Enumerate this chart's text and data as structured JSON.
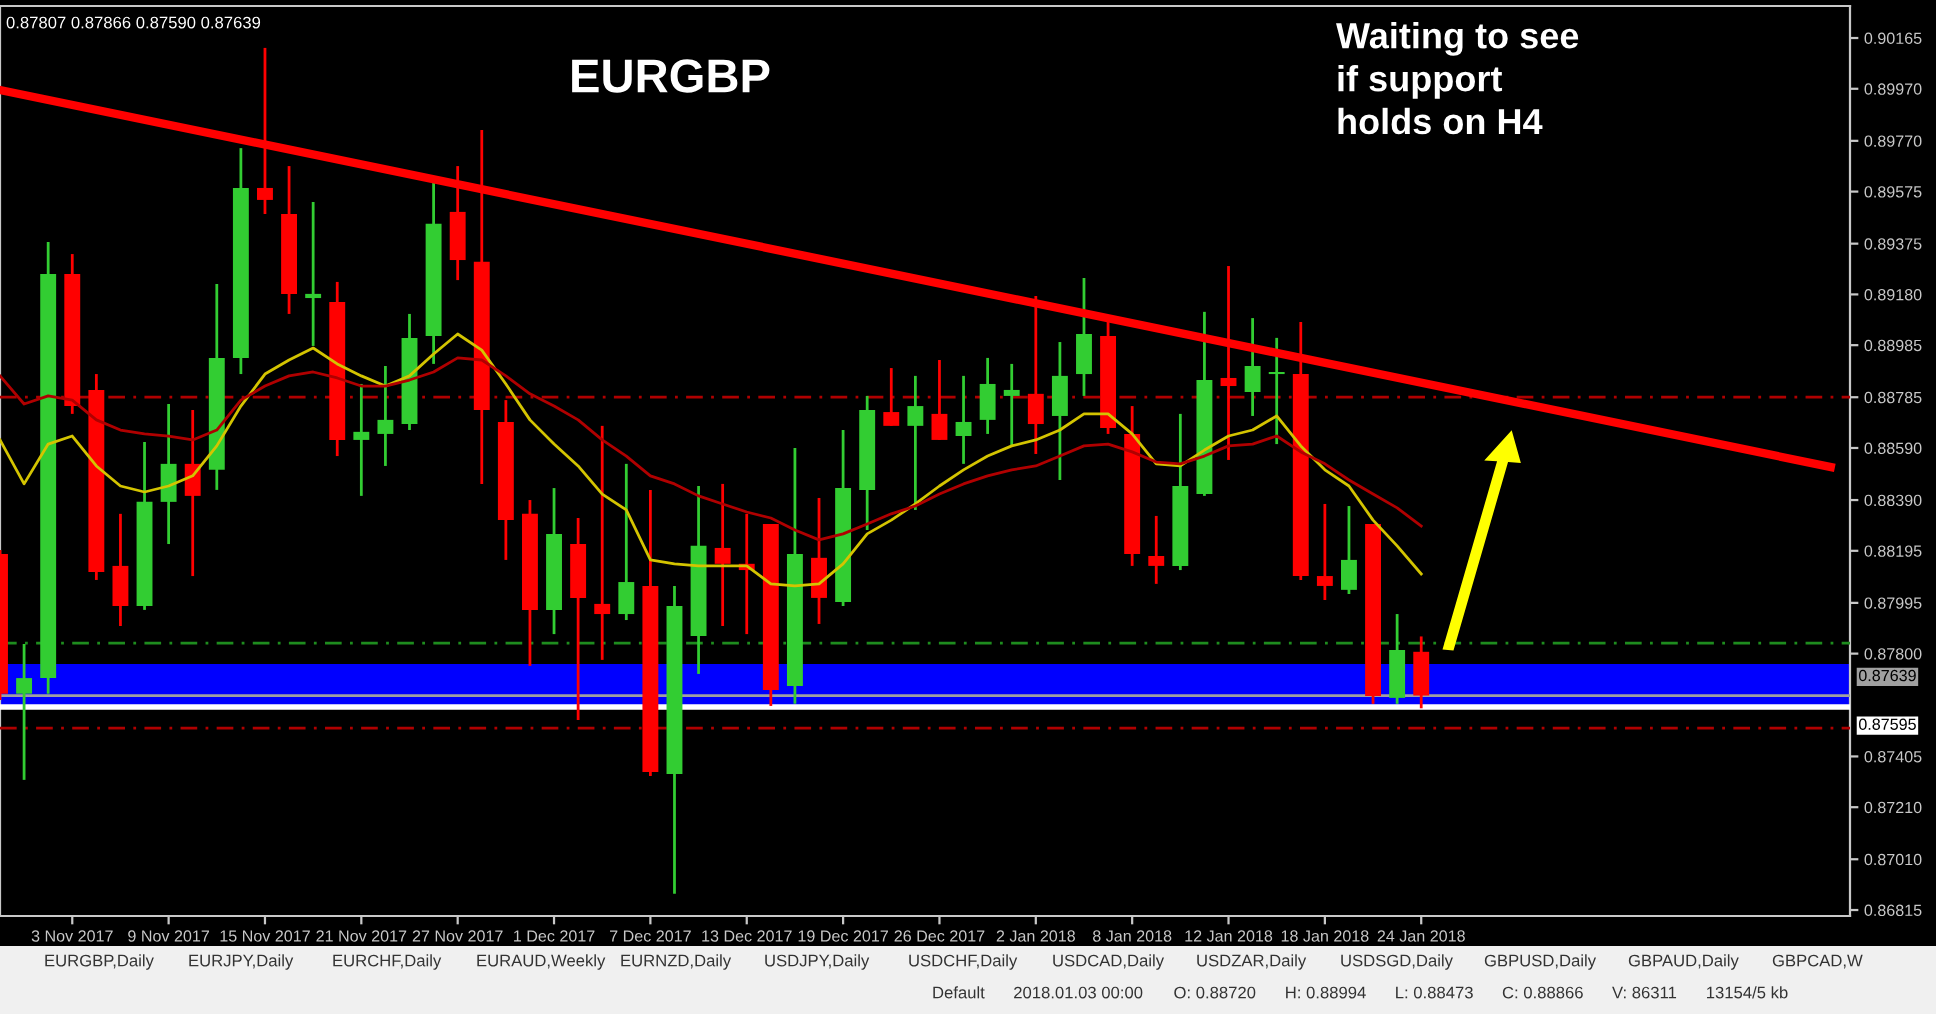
{
  "chart_data": {
    "type": "candlestick",
    "title": "EURGBP",
    "categories": [
      null,
      null,
      null,
      "3 Nov 2017",
      null,
      null,
      null,
      "9 Nov 2017",
      null,
      null,
      null,
      "15 Nov 2017",
      null,
      null,
      null,
      "21 Nov 2017",
      null,
      null,
      null,
      "27 Nov 2017",
      null,
      null,
      null,
      "1 Dec 2017",
      null,
      null,
      null,
      "7 Dec 2017",
      null,
      null,
      null,
      "13 Dec 2017",
      null,
      null,
      null,
      "19 Dec 2017",
      null,
      null,
      null,
      "26 Dec 2017",
      null,
      null,
      null,
      "2 Jan 2018",
      null,
      null,
      null,
      "8 Jan 2018",
      null,
      null,
      null,
      "12 Jan 2018",
      null,
      null,
      null,
      "18 Jan 2018",
      null,
      null,
      null,
      "24 Jan 2018",
      null,
      null,
      null,
      null,
      null,
      null,
      null,
      null,
      null,
      null,
      null,
      null,
      null,
      null,
      null,
      null,
      null
    ],
    "ohlc": [
      [
        0.88183,
        0.88198,
        0.87622,
        0.87646
      ],
      [
        0.87646,
        0.87837,
        0.87315,
        0.87706
      ],
      [
        0.87706,
        0.89381,
        0.87646,
        0.89258
      ],
      [
        0.89258,
        0.89335,
        0.88721,
        0.88751
      ],
      [
        0.88813,
        0.88874,
        0.88083,
        0.88114
      ],
      [
        0.88137,
        0.88337,
        0.87906,
        0.87983
      ],
      [
        0.87983,
        0.88613,
        0.87968,
        0.88383
      ],
      [
        0.88383,
        0.88759,
        0.88221,
        0.88529
      ],
      [
        0.88529,
        0.88736,
        0.88098,
        0.88406
      ],
      [
        0.88506,
        0.8922,
        0.88429,
        0.88936
      ],
      [
        0.88936,
        0.89742,
        0.88874,
        0.89589
      ],
      [
        0.89589,
        0.90127,
        0.89489,
        0.89543
      ],
      [
        0.89489,
        0.89673,
        0.89105,
        0.89182
      ],
      [
        0.89166,
        0.89535,
        0.88982,
        0.89182
      ],
      [
        0.89151,
        0.89228,
        0.88559,
        0.88621
      ],
      [
        0.88621,
        0.88836,
        0.88406,
        0.88652
      ],
      [
        0.88644,
        0.88905,
        0.88521,
        0.88698
      ],
      [
        0.88682,
        0.89105,
        0.88659,
        0.89013
      ],
      [
        0.8902,
        0.89612,
        0.88913,
        0.89451
      ],
      [
        0.89497,
        0.89673,
        0.89235,
        0.89312
      ],
      [
        0.89305,
        0.89812,
        0.88452,
        0.88736
      ],
      [
        0.8869,
        0.88774,
        0.8816,
        0.88313
      ],
      [
        0.88337,
        0.8839,
        0.87753,
        0.87968
      ],
      [
        0.87968,
        0.88436,
        0.87875,
        0.8826
      ],
      [
        0.88221,
        0.88321,
        0.87545,
        0.88014
      ],
      [
        0.87991,
        0.88675,
        0.87776,
        0.87952
      ],
      [
        0.87952,
        0.88529,
        0.87929,
        0.88075
      ],
      [
        0.8806,
        0.88429,
        0.8733,
        0.87345
      ],
      [
        0.87338,
        0.8806,
        0.86877,
        0.87983
      ],
      [
        0.87868,
        0.88444,
        0.87722,
        0.88214
      ],
      [
        0.88206,
        0.88452,
        0.87906,
        0.88145
      ],
      [
        0.88145,
        0.88337,
        0.87875,
        0.88121
      ],
      [
        0.88298,
        0.88298,
        0.87599,
        0.8766
      ],
      [
        0.87676,
        0.8859,
        0.87607,
        0.88183
      ],
      [
        0.88168,
        0.88398,
        0.87914,
        0.88014
      ],
      [
        0.87998,
        0.88659,
        0.87983,
        0.88436
      ],
      [
        0.88429,
        0.8879,
        0.88275,
        0.88736
      ],
      [
        0.88728,
        0.88897,
        0.88675,
        0.88675
      ],
      [
        0.88675,
        0.88867,
        0.88352,
        0.88751
      ],
      [
        0.88721,
        0.88928,
        0.88621,
        0.88621
      ],
      [
        0.88636,
        0.88867,
        0.88529,
        0.8869
      ],
      [
        0.88698,
        0.88936,
        0.88644,
        0.88836
      ],
      [
        0.8879,
        0.88913,
        0.88598,
        0.88813
      ],
      [
        0.88798,
        0.89174,
        0.88567,
        0.88682
      ],
      [
        0.88713,
        0.88997,
        0.88467,
        0.88867
      ],
      [
        0.88874,
        0.89243,
        0.8879,
        0.89028
      ],
      [
        0.8902,
        0.89082,
        0.88644,
        0.88667
      ],
      [
        0.88644,
        0.88751,
        0.88137,
        0.88183
      ],
      [
        0.88175,
        0.88329,
        0.88068,
        0.88137
      ],
      [
        0.88137,
        0.88721,
        0.88121,
        0.88444
      ],
      [
        0.88413,
        0.89113,
        0.88406,
        0.88851
      ],
      [
        0.88859,
        0.89289,
        0.88544,
        0.88828
      ],
      [
        0.88805,
        0.89089,
        0.88713,
        0.88905
      ],
      [
        0.88874,
        0.89013,
        0.88605,
        0.88882
      ],
      [
        0.88874,
        0.89074,
        0.88083,
        0.88098
      ],
      [
        0.88098,
        0.88375,
        0.88006,
        0.8806
      ],
      [
        0.88045,
        0.88367,
        0.88029,
        0.8816
      ],
      [
        0.88298,
        0.88298,
        0.87607,
        0.87637
      ],
      [
        0.8763,
        0.87952,
        0.87607,
        0.87814
      ],
      [
        0.87807,
        0.87866,
        0.8759,
        0.87639
      ],
      null,
      null,
      null,
      null,
      null,
      null,
      null,
      null,
      null,
      null,
      null,
      null,
      null,
      null,
      null,
      null,
      null
    ],
    "colors": [
      "#ff0000",
      "#32cd32",
      "#32cd32",
      "#ff0000",
      "#ff0000",
      "#ff0000",
      "#32cd32",
      "#32cd32",
      "#ff0000",
      "#32cd32",
      "#32cd32",
      "#ff0000",
      "#ff0000",
      "#32cd32",
      "#ff0000",
      "#32cd32",
      "#32cd32",
      "#32cd32",
      "#32cd32",
      "#ff0000",
      "#ff0000",
      "#ff0000",
      "#ff0000",
      "#32cd32",
      "#ff0000",
      "#ff0000",
      "#32cd32",
      "#ff0000",
      "#32cd32",
      "#32cd32",
      "#ff0000",
      "#ff0000",
      "#ff0000",
      "#32cd32",
      "#ff0000",
      "#32cd32",
      "#32cd32",
      "#ff0000",
      "#32cd32",
      "#ff0000",
      "#32cd32",
      "#32cd32",
      "#32cd32",
      "#ff0000",
      "#32cd32",
      "#32cd32",
      "#ff0000",
      "#ff0000",
      "#ff0000",
      "#32cd32",
      "#32cd32",
      "#ff0000",
      "#32cd32",
      "#32cd32",
      "#ff0000",
      "#ff0000",
      "#32cd32",
      "#ff0000",
      "#32cd32",
      "#ff0000",
      null,
      null,
      null,
      null,
      null,
      null,
      null,
      null,
      null,
      null,
      null,
      null,
      null,
      null,
      null,
      null,
      null
    ],
    "series": [
      {
        "type": "line",
        "color": "#d4c400",
        "values": [
          0.88621,
          0.88452,
          0.88605,
          0.88636,
          0.88521,
          0.88444,
          0.88421,
          0.88444,
          0.88483,
          0.88598,
          0.88751,
          0.88874,
          0.88928,
          0.88974,
          0.88913,
          0.88867,
          0.88828,
          0.88867,
          0.88951,
          0.89028,
          0.88966,
          0.88836,
          0.88698,
          0.88605,
          0.88521,
          0.88413,
          0.88352,
          0.8816,
          0.88145,
          0.88137,
          0.88137,
          0.88137,
          0.88068,
          0.8806,
          0.88068,
          0.88145,
          0.8826,
          0.88313,
          0.88375,
          0.88444,
          0.88506,
          0.88559,
          0.88598,
          0.88621,
          0.88659,
          0.88721,
          0.88721,
          0.88644,
          0.88529,
          0.88521,
          0.88582,
          0.88636,
          0.88659,
          0.88713,
          0.88598,
          0.88506,
          0.88444,
          0.88313,
          0.88214,
          0.88106,
          null,
          null,
          null,
          null,
          null,
          null,
          null,
          null,
          null,
          null,
          null,
          null,
          null,
          null,
          null,
          null,
          null
        ]
      },
      {
        "type": "line",
        "color": "#b00000",
        "values": [
          0.88867,
          0.88759,
          0.8879,
          0.88774,
          0.88698,
          0.88659,
          0.88644,
          0.88636,
          0.88621,
          0.88659,
          0.88774,
          0.88828,
          0.88867,
          0.88882,
          0.88859,
          0.88828,
          0.88828,
          0.88851,
          0.88882,
          0.88936,
          0.88928,
          0.88867,
          0.88798,
          0.88751,
          0.88698,
          0.88621,
          0.88559,
          0.88483,
          0.88452,
          0.88406,
          0.88375,
          0.88344,
          0.88321,
          0.88275,
          0.88237,
          0.8826,
          0.88298,
          0.88337,
          0.88367,
          0.88413,
          0.88452,
          0.88483,
          0.88506,
          0.88521,
          0.88559,
          0.88598,
          0.88605,
          0.88575,
          0.88536,
          0.88529,
          0.88559,
          0.88598,
          0.88605,
          0.88636,
          0.88575,
          0.88529,
          0.88467,
          0.88413,
          0.8836,
          0.8829,
          null,
          null,
          null,
          null,
          null,
          null,
          null,
          null,
          null,
          null,
          null,
          null,
          null,
          null,
          null,
          null,
          null
        ]
      },
      {
        "type": "line",
        "color": "#ff0000",
        "values": [
          0.89965,
          null,
          null,
          null,
          null,
          null,
          null,
          null,
          null,
          null,
          null,
          null,
          null,
          null,
          null,
          null,
          null,
          null,
          null,
          null,
          null,
          null,
          null,
          null,
          null,
          null,
          null,
          null,
          null,
          null,
          null,
          null,
          null,
          null,
          null,
          null,
          null,
          null,
          null,
          null,
          null,
          null,
          null,
          null,
          null,
          null,
          null,
          null,
          null,
          null,
          null,
          null,
          null,
          null,
          null,
          null,
          null,
          null,
          null,
          null,
          null,
          null,
          null,
          null,
          null,
          null,
          null,
          null,
          null,
          null,
          null,
          null,
          null,
          null,
          null,
          null,
          0.88517
        ]
      }
    ],
    "ylim": [
      0.86792,
      0.90288
    ],
    "yticks": [
      0.90165,
      {
        "value": 0.8997,
        "label": "0.89970"
      },
      {
        "value": 0.8977,
        "label": "0.89770"
      },
      0.89575,
      0.89375,
      {
        "value": 0.8918,
        "label": "0.89180"
      },
      0.88985,
      0.88785,
      {
        "value": 0.8859,
        "label": "0.88590"
      },
      {
        "value": 0.8839,
        "label": "0.88390"
      },
      0.88195,
      0.87995,
      {
        "value": 0.878,
        "label": "0.87800"
      },
      0.87405,
      {
        "value": 0.8721,
        "label": "0.87210"
      },
      {
        "value": 0.8701,
        "label": "0.87010"
      },
      0.86815
    ],
    "ref_lines": [
      {
        "axis": "y",
        "value": 0.88785,
        "color": "#b00000",
        "line_style": "dashed"
      },
      {
        "axis": "y",
        "value": 0.8784,
        "color": "#1e8c1e",
        "line_style": "dashed"
      },
      {
        "axis": "y",
        "value": 0.87514,
        "color": "#b00000",
        "line_style": "dashed"
      },
      {
        "axis": "y",
        "value": 0.87639,
        "color": "#a0a0a0",
        "line_style": "solid",
        "label": "0.87639"
      },
      {
        "axis": "y",
        "value": 0.87595,
        "color": "#ffffff",
        "line_style": "solid",
        "label": "0.87595"
      }
    ],
    "bands": [
      {
        "axis": "y",
        "from": 0.87599,
        "to": 0.8776,
        "color": "#0000ff"
      }
    ],
    "annotations": [
      "Waiting to see\nif support\nholds on H4",
      "0.87807 0.87866 0.87590 0.87639",
      "EURGBP,Daily",
      "EURJPY,Daily",
      "EURCHF,Daily",
      "EURAUD,Weekly",
      "EURNZD,Daily",
      "USDJPY,Daily",
      "USDCHF,Daily",
      "USDCAD,Daily",
      "USDZAR,Daily",
      "USDSGD,Daily",
      "GBPUSD,Daily",
      "GBPAUD,Daily",
      "GBPCAD,W",
      "Default",
      "2018.01.03 00:00",
      "O: 0.88720",
      "H: 0.88994",
      "L: 0.88473",
      "C: 0.88866",
      "V: 86311",
      "13154/5 kb"
    ]
  }
}
